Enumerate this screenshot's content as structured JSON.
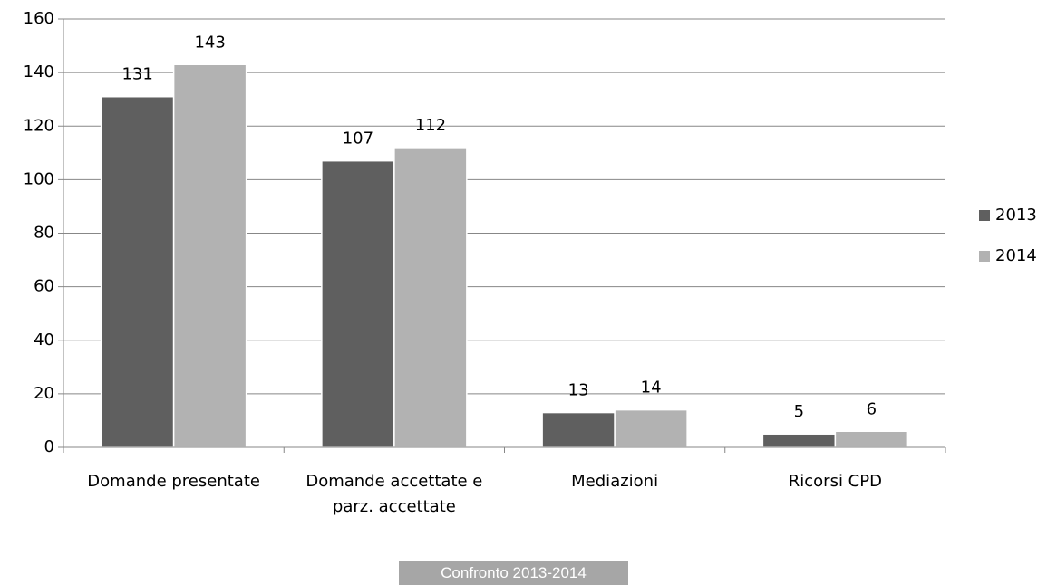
{
  "chart_data": {
    "type": "bar",
    "caption": "Confronto 2013-2014",
    "categories": [
      "Domande presentate",
      "Domande accettate e parz. accettate",
      "Mediazioni",
      "Ricorsi CPD"
    ],
    "series": [
      {
        "name": "2013",
        "color": "#5f5f5f",
        "values": [
          131,
          107,
          13,
          5
        ]
      },
      {
        "name": "2014",
        "color": "#b2b2b2",
        "values": [
          143,
          112,
          14,
          6
        ]
      }
    ],
    "ylim": [
      0,
      160
    ],
    "yticks": [
      0,
      20,
      40,
      60,
      80,
      100,
      120,
      140,
      160
    ],
    "grid": true,
    "legend": "right"
  }
}
